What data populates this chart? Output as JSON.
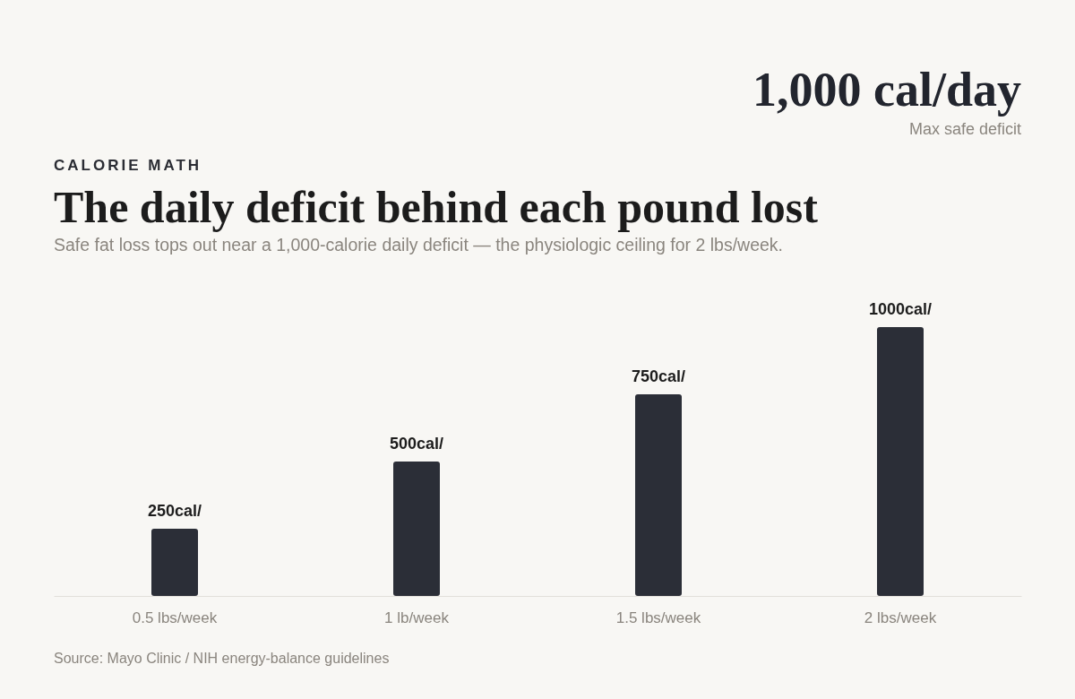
{
  "chart_data": {
    "type": "bar",
    "title": "The daily deficit behind each pound lost",
    "subtitle": "Safe fat loss tops out near a 1,000-calorie daily deficit — the physiologic ceiling for 2 lbs/week.",
    "annotations": [
      "CALORIE MATH",
      "1,000 cal/day",
      "Max safe deficit",
      "Source: Mayo Clinic / NIH energy-balance guidelines"
    ],
    "categories": [
      "0.5 lbs/week",
      "1 lb/week",
      "1.5 lbs/week",
      "2 lbs/week"
    ],
    "values": [
      250,
      500,
      750,
      1000
    ],
    "value_labels": [
      "250cal/",
      "500cal/",
      "750cal/",
      "1000cal/"
    ],
    "color": "#2b2e37"
  }
}
